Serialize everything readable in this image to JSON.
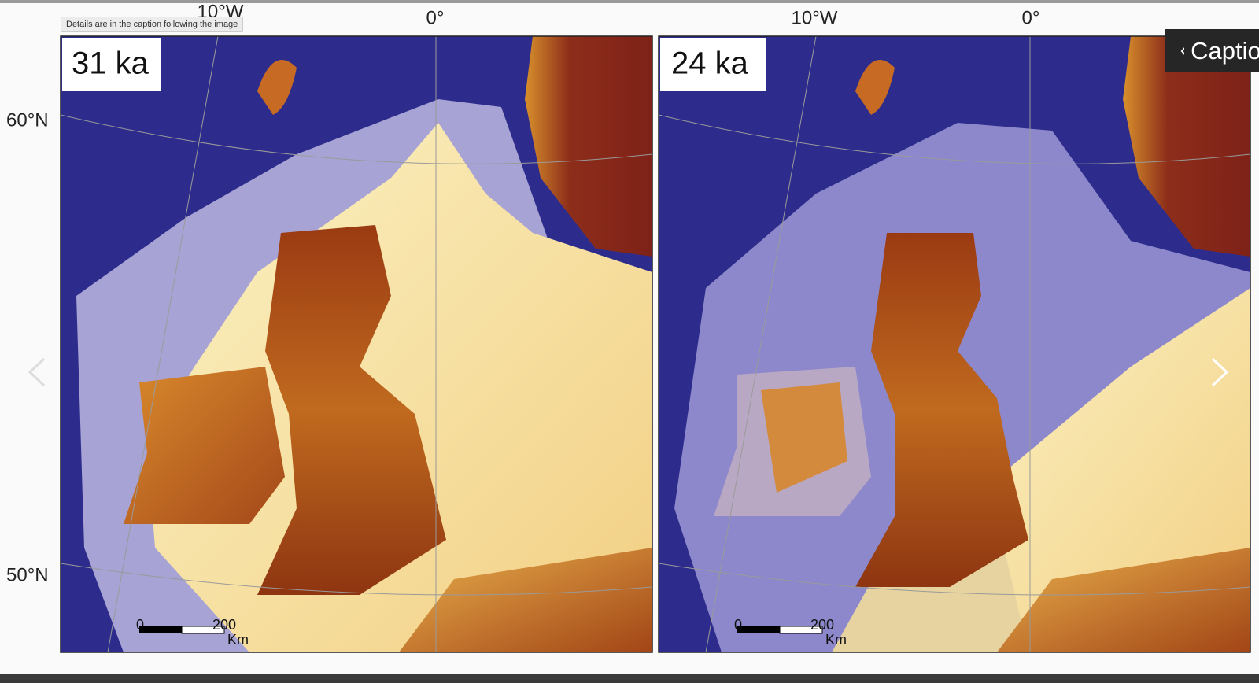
{
  "tooltip": "Details are in the caption following the image",
  "caption_button": "Caption",
  "panels": [
    {
      "label": "31 ka",
      "lon_labels": [
        "10°W",
        "0°"
      ],
      "lat_labels": [
        "60°N",
        "50°N"
      ],
      "scale": {
        "ticks": [
          "0",
          "200"
        ],
        "unit": "Km"
      }
    },
    {
      "label": "24 ka",
      "lon_labels": [
        "10°W",
        "0°"
      ],
      "scale": {
        "ticks": [
          "0",
          "200"
        ],
        "unit": "Km"
      }
    }
  ]
}
